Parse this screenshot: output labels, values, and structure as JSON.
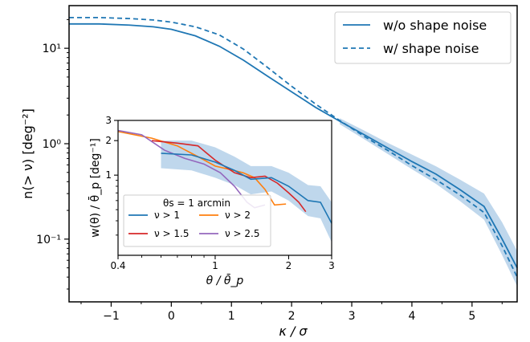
{
  "chart_data": [
    {
      "type": "line",
      "xlabel": "κ / σ",
      "ylabel": "n(> ν) [deg⁻²]",
      "xlim": [
        -1.7,
        5.75
      ],
      "ylim": [
        0.022,
        28
      ],
      "yscale": "log",
      "x_ticks": [
        -1,
        0,
        1,
        2,
        3,
        4,
        5
      ],
      "x_tick_labels": [
        "−1",
        "0",
        "1",
        "2",
        "3",
        "4",
        "5"
      ],
      "y_ticks": [
        0.1,
        1,
        10
      ],
      "y_tick_labels": [
        "10⁻¹",
        "10⁰",
        "10¹"
      ],
      "legend_position": "top-right",
      "color": "#1f77b4",
      "band_color": "#a9c9e6",
      "series": [
        {
          "name": "w/o shape noise",
          "style": "solid",
          "x": [
            -1.7,
            -1.2,
            -0.7,
            -0.3,
            0.0,
            0.4,
            0.8,
            1.2,
            1.6,
            2.0,
            2.4,
            2.8,
            3.2,
            3.6,
            4.0,
            4.4,
            4.8,
            5.2,
            5.5,
            5.75
          ],
          "y": [
            18.0,
            18.0,
            17.5,
            16.8,
            15.8,
            13.5,
            10.5,
            7.5,
            5.1,
            3.5,
            2.4,
            1.72,
            1.25,
            0.9,
            0.65,
            0.48,
            0.33,
            0.22,
            0.1,
            0.05
          ],
          "band_upper": [
            null,
            null,
            null,
            null,
            null,
            null,
            null,
            null,
            null,
            null,
            null,
            1.85,
            1.38,
            1.02,
            0.77,
            0.58,
            0.42,
            0.3,
            0.15,
            0.075
          ],
          "band_lower": [
            null,
            null,
            null,
            null,
            null,
            null,
            null,
            null,
            null,
            null,
            null,
            1.6,
            1.12,
            0.78,
            0.54,
            0.38,
            0.25,
            0.16,
            0.068,
            0.032
          ]
        },
        {
          "name": "w/ shape noise",
          "style": "dashed",
          "x": [
            -1.7,
            -1.2,
            -0.7,
            -0.3,
            0.0,
            0.4,
            0.8,
            1.2,
            1.6,
            2.0,
            2.4,
            2.8,
            3.2,
            3.6,
            4.0,
            4.4,
            4.8,
            5.2,
            5.5,
            5.75
          ],
          "y": [
            21.0,
            21.0,
            20.5,
            19.8,
            18.8,
            16.8,
            13.8,
            9.8,
            6.3,
            4.0,
            2.6,
            1.75,
            1.2,
            0.85,
            0.59,
            0.42,
            0.29,
            0.19,
            0.085,
            0.04
          ]
        }
      ]
    },
    {
      "type": "line",
      "xlabel": "θ / θ̄_p",
      "ylabel": "w(θ) / θ̄_p [deg⁻¹]",
      "xscale": "log",
      "yscale": "log",
      "xlim": [
        0.4,
        3
      ],
      "ylim": [
        0.2,
        3
      ],
      "x_ticks": [
        0.4,
        1,
        2,
        3
      ],
      "x_tick_labels": [
        "0.4",
        "1",
        "2",
        "3"
      ],
      "y_ticks": [
        1,
        2,
        3
      ],
      "y_tick_labels": [
        "1",
        "2",
        "3"
      ],
      "legend_title": "θs = 1 arcmin",
      "legend_position": "bottom-left",
      "series": [
        {
          "name": "ν > 1",
          "color": "#1f77b4",
          "x": [
            0.6,
            0.8,
            1.0,
            1.2,
            1.4,
            1.7,
            2.0,
            2.4,
            2.7,
            3.0
          ],
          "y": [
            1.55,
            1.5,
            1.3,
            1.1,
            0.92,
            0.95,
            0.8,
            0.6,
            0.58,
            0.38
          ],
          "band_upper": [
            2.0,
            2.0,
            1.75,
            1.45,
            1.2,
            1.2,
            1.05,
            0.82,
            0.8,
            0.58
          ],
          "band_lower": [
            1.15,
            1.1,
            0.95,
            0.82,
            0.68,
            0.72,
            0.6,
            0.44,
            0.42,
            0.26
          ]
        },
        {
          "name": "ν > 1.5",
          "color": "#d62728",
          "x": [
            0.55,
            0.7,
            0.85,
            1.0,
            1.2,
            1.4,
            1.6,
            1.8,
            2.0,
            2.2,
            2.35
          ],
          "y": [
            2.0,
            1.9,
            1.8,
            1.35,
            1.05,
            0.95,
            0.98,
            0.85,
            0.7,
            0.58,
            0.48
          ]
        },
        {
          "name": "ν > 2",
          "color": "#ff7f0e",
          "x": [
            0.4,
            0.55,
            0.7,
            0.85,
            1.0,
            1.15,
            1.3,
            1.45,
            1.6,
            1.75,
            1.95
          ],
          "y": [
            2.4,
            2.1,
            1.8,
            1.45,
            1.2,
            1.12,
            1.05,
            0.95,
            0.75,
            0.55,
            0.56
          ]
        },
        {
          "name": "ν > 2.5",
          "color": "#9467bd",
          "x": [
            0.4,
            0.5,
            0.62,
            0.75,
            0.9,
            1.05,
            1.2,
            1.35,
            1.45,
            1.6
          ],
          "y": [
            2.45,
            2.25,
            1.65,
            1.4,
            1.25,
            1.05,
            0.8,
            0.58,
            0.52,
            0.55
          ]
        }
      ]
    }
  ]
}
